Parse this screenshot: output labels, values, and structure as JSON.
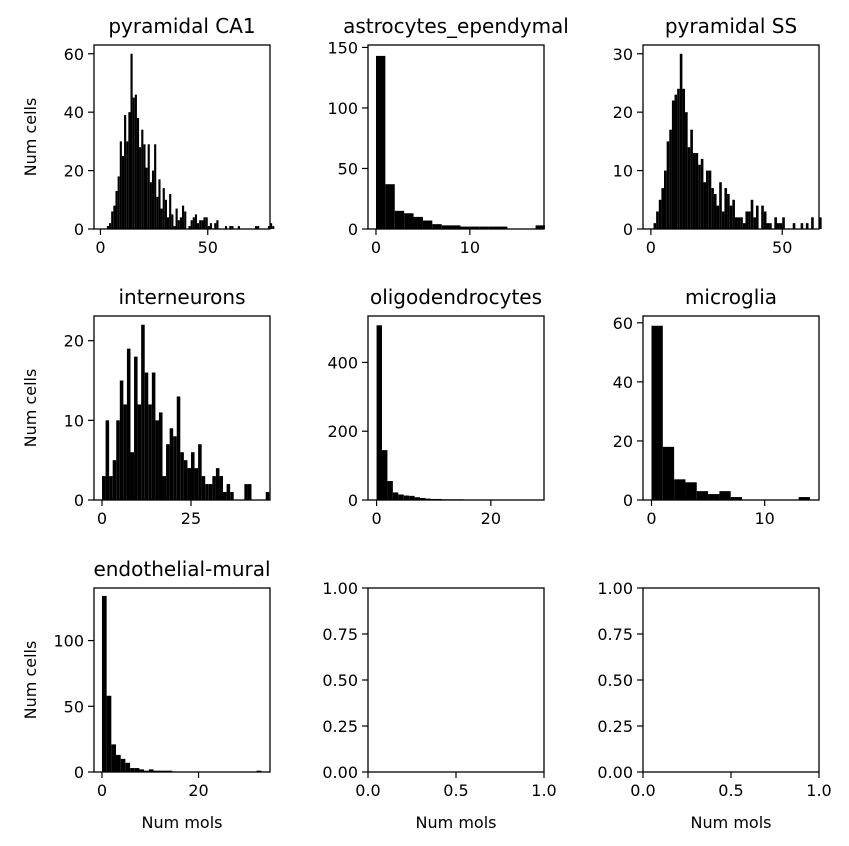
{
  "chart_data": [
    {
      "type": "bar",
      "title": "pyramidal CA1",
      "xlabel": "",
      "ylabel": "Num cells",
      "xlim": [
        -3,
        79
      ],
      "ylim": [
        0,
        63
      ],
      "xticks": [
        0,
        50
      ],
      "yticks": [
        0,
        20,
        40,
        60
      ],
      "bin_start": 3,
      "bin_width": 1,
      "values": [
        1,
        2,
        6,
        8,
        13,
        18,
        30,
        25,
        39,
        30,
        40,
        60,
        45,
        46,
        38,
        28,
        34,
        29,
        21,
        29,
        16,
        20,
        29,
        11,
        17,
        7,
        14,
        10,
        4,
        12,
        5,
        1,
        7,
        3,
        4,
        8,
        6,
        0,
        1,
        3,
        4,
        5,
        2,
        3,
        3,
        4,
        4,
        1,
        2,
        0,
        2,
        3,
        0,
        0,
        0,
        1,
        0,
        1,
        1,
        0,
        0,
        1,
        0,
        0,
        0,
        0,
        0,
        0,
        0,
        1,
        1,
        0,
        0,
        0,
        0,
        1,
        2,
        1
      ]
    },
    {
      "type": "bar",
      "title": "astrocytes_ependymal",
      "xlabel": "",
      "ylabel": "",
      "xlim": [
        -0.85,
        17.9
      ],
      "ylim": [
        0,
        152
      ],
      "xticks": [
        0,
        10
      ],
      "yticks": [
        0,
        50,
        100,
        150
      ],
      "bin_start": 0,
      "bin_width": 1.0,
      "values": [
        143,
        37,
        15,
        13,
        10,
        7,
        4,
        3,
        3,
        2,
        2,
        2,
        2,
        2,
        0,
        0,
        0,
        3
      ]
    },
    {
      "type": "bar",
      "title": "pyramidal SS",
      "xlabel": "",
      "ylabel": "",
      "xlim": [
        -3,
        64
      ],
      "ylim": [
        0,
        31.5
      ],
      "xticks": [
        0,
        50
      ],
      "yticks": [
        0,
        10,
        20,
        30
      ],
      "bin_start": 1,
      "bin_width": 1.0,
      "values": [
        1,
        3,
        5,
        7,
        10,
        15,
        17,
        22,
        23,
        24,
        30,
        24,
        20,
        14,
        17,
        13,
        13,
        11,
        12,
        8,
        10,
        10,
        7,
        6,
        4,
        8,
        3,
        7,
        6,
        4,
        5,
        2,
        2,
        2,
        1,
        3,
        3,
        5,
        2,
        4,
        0,
        4,
        3,
        1,
        1,
        0,
        2,
        1,
        1,
        2,
        0,
        0,
        0,
        1,
        0,
        0,
        1,
        0,
        1,
        0,
        2,
        0,
        0,
        2
      ]
    },
    {
      "type": "bar",
      "title": "interneurons",
      "xlabel": "",
      "ylabel": "Num cells",
      "xlim": [
        -2.25,
        47.2
      ],
      "ylim": [
        0,
        23.1
      ],
      "xticks": [
        0,
        25
      ],
      "yticks": [
        0,
        10,
        20
      ],
      "bin_start": 0,
      "bin_width": 1.0,
      "values": [
        3,
        10,
        3,
        5,
        10,
        15,
        12,
        19,
        6,
        18,
        12,
        22,
        16,
        12,
        16,
        10,
        11,
        3,
        7,
        9,
        8,
        13,
        6,
        5,
        4,
        6,
        4,
        7,
        3,
        2,
        2,
        3,
        4,
        3,
        1,
        2,
        1,
        0,
        0,
        0,
        2,
        2,
        0,
        0,
        0,
        0,
        1,
        0
      ]
    },
    {
      "type": "bar",
      "title": "oligodendrocytes",
      "xlabel": "",
      "ylabel": "",
      "xlim": [
        -1.5,
        29.3
      ],
      "ylim": [
        0,
        535
      ],
      "xticks": [
        0,
        20
      ],
      "yticks": [
        0,
        200,
        400
      ],
      "bin_start": 0,
      "bin_width": 0.95,
      "values": [
        508,
        145,
        55,
        22,
        16,
        13,
        12,
        8,
        6,
        4,
        3,
        3,
        2,
        2,
        2,
        2,
        1,
        1,
        1,
        1,
        1,
        1,
        0,
        0,
        0,
        0,
        0,
        0,
        0,
        0
      ]
    },
    {
      "type": "bar",
      "title": "microglia",
      "xlabel": "",
      "ylabel": "",
      "xlim": [
        -0.75,
        14.8
      ],
      "ylim": [
        0,
        62.3
      ],
      "xticks": [
        0,
        10
      ],
      "yticks": [
        0,
        20,
        40,
        60
      ],
      "bin_start": 0,
      "bin_width": 1.0,
      "values": [
        59,
        18,
        7,
        6,
        3,
        2,
        3,
        1,
        0,
        0,
        0,
        0,
        0,
        1
      ]
    },
    {
      "type": "bar",
      "title": "endothelial-mural",
      "xlabel": "Num mols",
      "ylabel": "Num cells",
      "xlim": [
        -1.65,
        34.8
      ],
      "ylim": [
        0,
        140
      ],
      "xticks": [
        0,
        20
      ],
      "yticks": [
        0,
        50,
        100
      ],
      "bin_start": 0,
      "bin_width": 0.97,
      "values": [
        134,
        58,
        21,
        13,
        10,
        7,
        3,
        3,
        2,
        1,
        2,
        1,
        1,
        1,
        1,
        0,
        0,
        0,
        0,
        0,
        0,
        0,
        0,
        0,
        0,
        0,
        0,
        0,
        0,
        0,
        0,
        0,
        0,
        1
      ]
    },
    {
      "type": "empty",
      "title": "",
      "xlabel": "Num mols",
      "ylabel": "",
      "xlim": [
        0,
        1
      ],
      "ylim": [
        0,
        1
      ],
      "xticks": [
        0,
        0.5,
        1
      ],
      "yticks": [
        0,
        0.25,
        0.5,
        0.75,
        1
      ],
      "xtick_labels": [
        "0.0",
        "0.5",
        "1.0"
      ],
      "ytick_labels": [
        "0.00",
        "0.25",
        "0.50",
        "0.75",
        "1.00"
      ],
      "values": []
    },
    {
      "type": "empty",
      "title": "",
      "xlabel": "Num mols",
      "ylabel": "",
      "xlim": [
        0,
        1
      ],
      "ylim": [
        0,
        1
      ],
      "xticks": [
        0,
        0.5,
        1
      ],
      "yticks": [
        0,
        0.25,
        0.5,
        0.75,
        1
      ],
      "xtick_labels": [
        "0.0",
        "0.5",
        "1.0"
      ],
      "ytick_labels": [
        "0.00",
        "0.25",
        "0.50",
        "0.75",
        "1.00"
      ],
      "values": []
    }
  ]
}
